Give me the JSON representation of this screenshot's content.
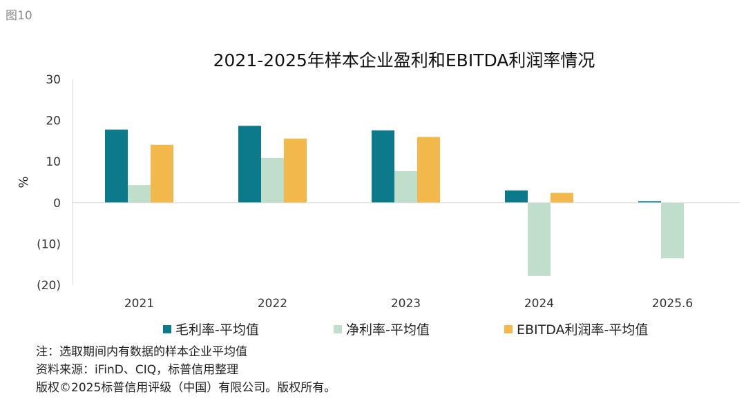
{
  "figure_label": "图10",
  "chart_data": {
    "type": "bar",
    "title": "2021-2025年样本企业盈利和EBITDA利润率情况",
    "xlabel": "",
    "ylabel": "%",
    "ylim": [
      -20,
      30
    ],
    "yticks": [
      30,
      20,
      10,
      0,
      -10,
      -20
    ],
    "ytick_labels": [
      "30",
      "20",
      "10",
      "0",
      "(10)",
      "(20)"
    ],
    "categories": [
      "2021",
      "2022",
      "2023",
      "2024",
      "2025.6"
    ],
    "series": [
      {
        "name": "毛利率-平均值",
        "color": "#0d7a8c",
        "values": [
          17.8,
          18.7,
          17.6,
          3.0,
          0.4
        ]
      },
      {
        "name": "净利率-平均值",
        "color": "#bfdecb",
        "values": [
          4.3,
          10.9,
          7.7,
          -17.8,
          -13.5
        ]
      },
      {
        "name": "EBITDA利润率-平均值",
        "color": "#f2b84b",
        "values": [
          14.1,
          15.6,
          16.0,
          2.4,
          null
        ]
      }
    ],
    "grid": false,
    "legend_position": "bottom"
  },
  "notes": [
    "注：选取期间内有数据的样本企业平均值",
    "资料来源：iFinD、CIQ，标普信用整理",
    "版权©2025标普信用评级（中国）有限公司。版权所有。"
  ]
}
